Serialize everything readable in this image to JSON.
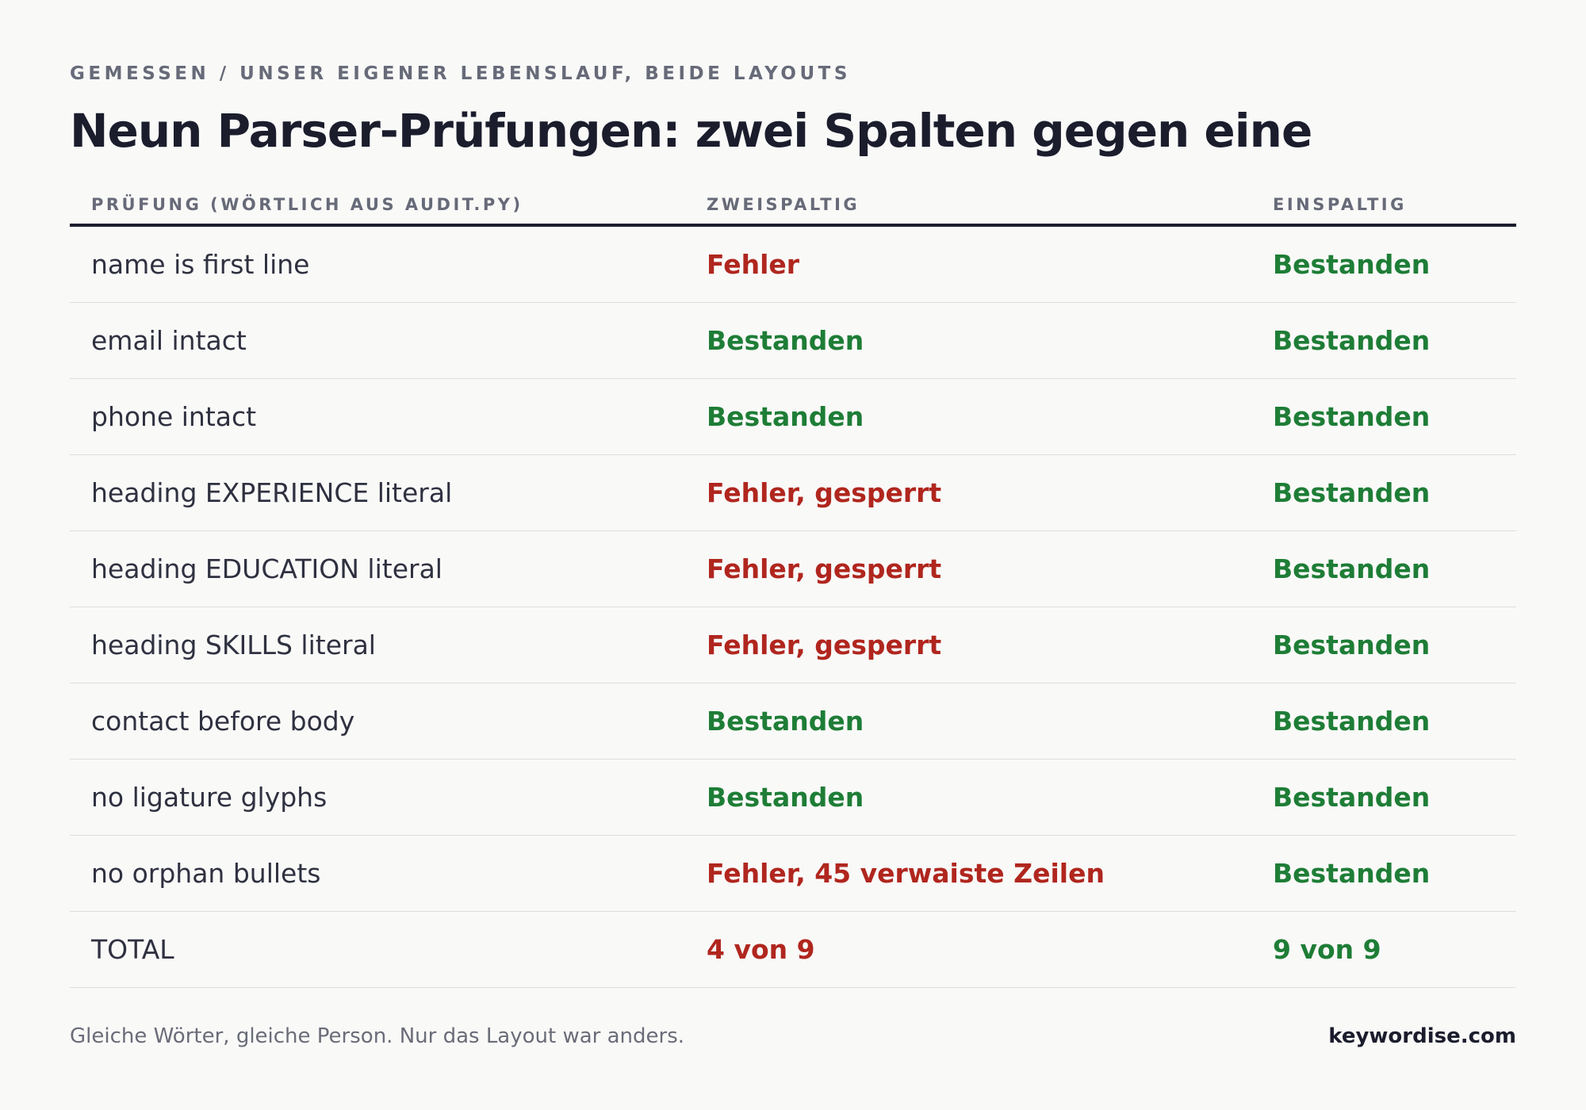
{
  "eyebrow": "GEMESSEN / UNSER EIGENER LEBENSLAUF, BEIDE LAYOUTS",
  "title": "Neun Parser-Prüfungen: zwei Spalten gegen eine",
  "table": {
    "headers": {
      "check": "PRÜFUNG (WÖRTLICH AUS AUDIT.PY)",
      "two_column": "ZWEISPALTIG",
      "one_column": "EINSPALTIG"
    },
    "rows": [
      {
        "check": "name is first line",
        "two_column": "Fehler",
        "one_column": "Bestanden"
      },
      {
        "check": "email intact",
        "two_column": "Bestanden",
        "one_column": "Bestanden"
      },
      {
        "check": "phone intact",
        "two_column": "Bestanden",
        "one_column": "Bestanden"
      },
      {
        "check": "heading EXPERIENCE literal",
        "two_column": "Fehler, gesperrt",
        "one_column": "Bestanden"
      },
      {
        "check": "heading EDUCATION literal",
        "two_column": "Fehler, gesperrt",
        "one_column": "Bestanden"
      },
      {
        "check": "heading SKILLS literal",
        "two_column": "Fehler, gesperrt",
        "one_column": "Bestanden"
      },
      {
        "check": "contact before body",
        "two_column": "Bestanden",
        "one_column": "Bestanden"
      },
      {
        "check": "no ligature glyphs",
        "two_column": "Bestanden",
        "one_column": "Bestanden"
      },
      {
        "check": "no orphan bullets",
        "two_column": "Fehler, 45 verwaiste Zeilen",
        "one_column": "Bestanden"
      }
    ],
    "total": {
      "check": "TOTAL",
      "two_column": "4 von 9",
      "one_column": "9 von 9"
    }
  },
  "footer": {
    "note": "Gleiche Wörter, gleiche Person. Nur das Layout war anders.",
    "brand": "keywordise.com"
  },
  "colors": {
    "fail": "#b0261e",
    "pass": "#1e7d36",
    "heading": "#1b1d2d",
    "background": "#f9f9f8"
  }
}
